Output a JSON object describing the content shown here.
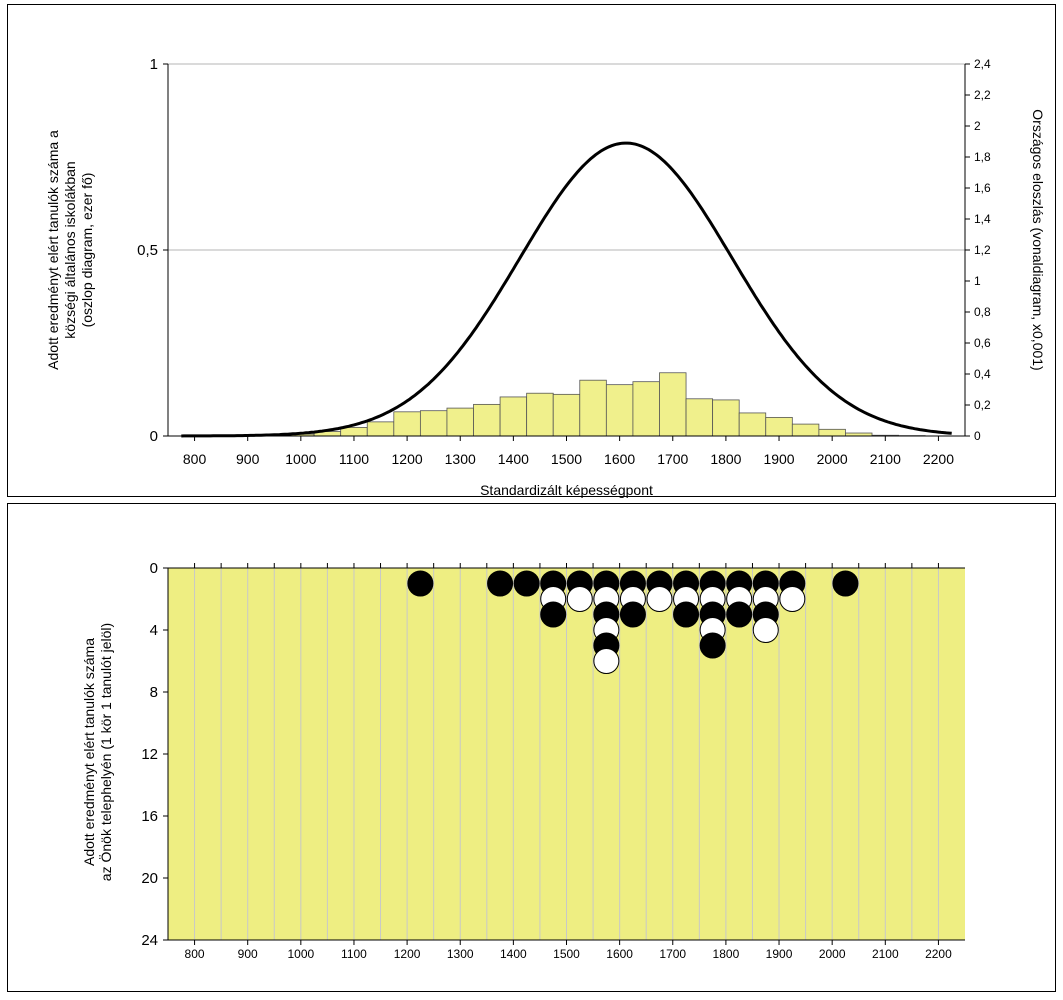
{
  "chart_data": [
    {
      "type": "bar+line",
      "xlabel": "Standardizált képességpont",
      "ylabel_left_lines": [
        "Adott eredményt elért tanulók száma a",
        "községi általános iskolákban",
        "(oszlop diagram, ezer fő)"
      ],
      "ylabel_right": "Országos eloszlás (vonaldiagram, x0,001)",
      "x_ticks": [
        800,
        900,
        1000,
        1100,
        1200,
        1300,
        1400,
        1500,
        1600,
        1700,
        1800,
        1900,
        2000,
        2100,
        2200
      ],
      "xlim": [
        750,
        2250
      ],
      "ylim_left": [
        0,
        1
      ],
      "y_ticks_left": [
        {
          "value": 0,
          "label": "0"
        },
        {
          "value": 0.5,
          "label": "0,5"
        },
        {
          "value": 1,
          "label": "1"
        }
      ],
      "ylim_right": [
        0,
        2.4
      ],
      "y_ticks_right": [
        {
          "value": 0,
          "label": "0"
        },
        {
          "value": 0.2,
          "label": "0,2"
        },
        {
          "value": 0.4,
          "label": "0,4"
        },
        {
          "value": 0.6,
          "label": "0,6"
        },
        {
          "value": 0.8,
          "label": "0,8"
        },
        {
          "value": 1.0,
          "label": "1"
        },
        {
          "value": 1.2,
          "label": "1,2"
        },
        {
          "value": 1.4,
          "label": "1,4"
        },
        {
          "value": 1.6,
          "label": "1,6"
        },
        {
          "value": 1.8,
          "label": "1,8"
        },
        {
          "value": 2.0,
          "label": "2"
        },
        {
          "value": 2.2,
          "label": "2,2"
        },
        {
          "value": 2.4,
          "label": "2,4"
        }
      ],
      "grid_left_values": [
        0.5,
        1
      ],
      "bar_color": "#f0f08c",
      "bar_width": 50,
      "bars": [
        {
          "x": 800,
          "value": 0.0
        },
        {
          "x": 850,
          "value": 0.0
        },
        {
          "x": 900,
          "value": 0.0
        },
        {
          "x": 950,
          "value": 0.002
        },
        {
          "x": 1000,
          "value": 0.005
        },
        {
          "x": 1050,
          "value": 0.012
        },
        {
          "x": 1100,
          "value": 0.023
        },
        {
          "x": 1150,
          "value": 0.038
        },
        {
          "x": 1200,
          "value": 0.065
        },
        {
          "x": 1250,
          "value": 0.068
        },
        {
          "x": 1300,
          "value": 0.075
        },
        {
          "x": 1350,
          "value": 0.085
        },
        {
          "x": 1400,
          "value": 0.105
        },
        {
          "x": 1450,
          "value": 0.115
        },
        {
          "x": 1500,
          "value": 0.112
        },
        {
          "x": 1550,
          "value": 0.15
        },
        {
          "x": 1600,
          "value": 0.138
        },
        {
          "x": 1650,
          "value": 0.146
        },
        {
          "x": 1700,
          "value": 0.17
        },
        {
          "x": 1750,
          "value": 0.1
        },
        {
          "x": 1800,
          "value": 0.097
        },
        {
          "x": 1850,
          "value": 0.062
        },
        {
          "x": 1900,
          "value": 0.05
        },
        {
          "x": 1950,
          "value": 0.032
        },
        {
          "x": 2000,
          "value": 0.018
        },
        {
          "x": 2050,
          "value": 0.008
        },
        {
          "x": 2100,
          "value": 0.002
        },
        {
          "x": 2150,
          "value": 0.001
        }
      ],
      "line_series": {
        "description": "national normal-shaped distribution curve",
        "peak_x": 1612,
        "peak_value": 1.89,
        "std_x": 200,
        "x_range": [
          775,
          2225
        ]
      }
    },
    {
      "type": "dot_plot",
      "ylabel_lines": [
        "Adott eredményt elért tanulók száma",
        "az Önök telephelyén (1 kör 1 tanulót jelöl)"
      ],
      "x_ticks": [
        800,
        900,
        1000,
        1100,
        1200,
        1300,
        1400,
        1500,
        1600,
        1700,
        1800,
        1900,
        2000,
        2100,
        2200
      ],
      "xlim": [
        750,
        2250
      ],
      "ylim": [
        0,
        24
      ],
      "y_inverted": true,
      "y_ticks": [
        0,
        4,
        8,
        12,
        16,
        20,
        24
      ],
      "background_color": "#eeee82",
      "columns": [
        {
          "x": 1225,
          "count": 1
        },
        {
          "x": 1375,
          "count": 1
        },
        {
          "x": 1425,
          "count": 1
        },
        {
          "x": 1475,
          "count": 3
        },
        {
          "x": 1525,
          "count": 2
        },
        {
          "x": 1575,
          "count": 6
        },
        {
          "x": 1625,
          "count": 3
        },
        {
          "x": 1675,
          "count": 2
        },
        {
          "x": 1725,
          "count": 3
        },
        {
          "x": 1775,
          "count": 5
        },
        {
          "x": 1825,
          "count": 3
        },
        {
          "x": 1875,
          "count": 4
        },
        {
          "x": 1925,
          "count": 2
        },
        {
          "x": 2025,
          "count": 1
        }
      ]
    }
  ]
}
